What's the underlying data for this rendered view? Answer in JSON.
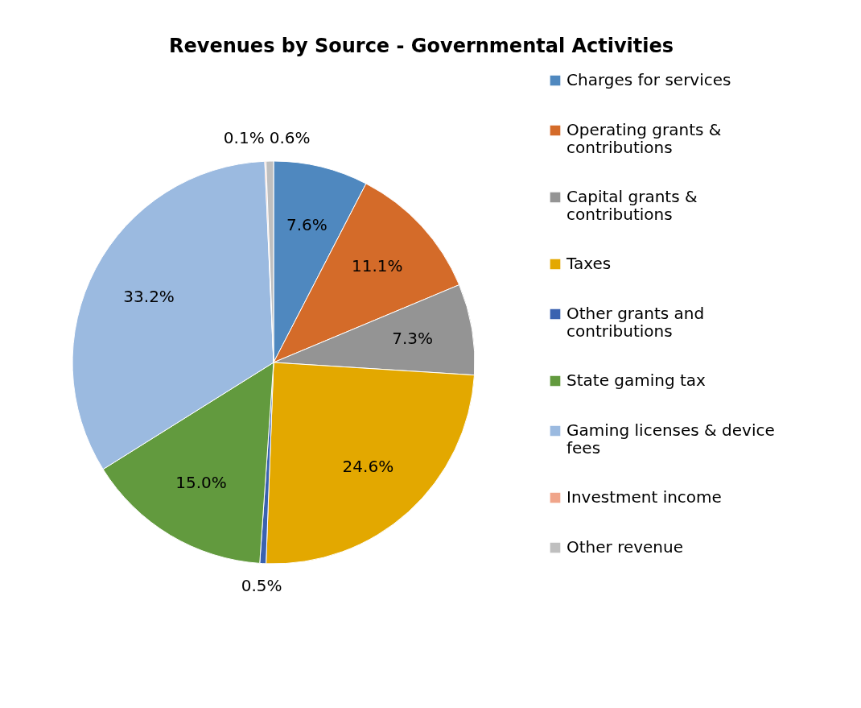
{
  "chart_data": {
    "type": "pie",
    "title": "Revenues by Source - Governmental Activities",
    "categories": [
      "Charges for services",
      "Operating grants & contributions",
      "Capital grants & contributions",
      "Taxes",
      "Other grants and contributions",
      "State gaming tax",
      "Gaming licenses & device fees",
      "Investment income",
      "Other revenue"
    ],
    "values": [
      7.6,
      11.1,
      7.3,
      24.6,
      0.5,
      15.0,
      33.2,
      0.1,
      0.6
    ],
    "value_labels": [
      "7.6%",
      "11.1%",
      "7.3%",
      "24.6%",
      "0.5%",
      "15.0%",
      "33.2%",
      "0.1%",
      "0.6%"
    ],
    "colors": [
      "#4f88bf",
      "#d46b29",
      "#949494",
      "#e3a800",
      "#3a62b0",
      "#629a3e",
      "#9bbae0",
      "#f0a58a",
      "#bfbfbf"
    ],
    "legend": "right"
  }
}
